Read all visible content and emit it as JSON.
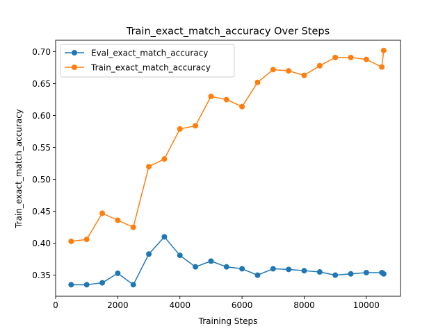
{
  "chart_data": {
    "type": "line",
    "title": "Train_exact_match_accuracy Over Steps",
    "xlabel": "Training Steps",
    "ylabel": "Train_exact_match_accuracy",
    "xlim": [
      0,
      11100
    ],
    "ylim": [
      0.317,
      0.718
    ],
    "xticks": [
      0,
      2000,
      4000,
      6000,
      8000,
      10000
    ],
    "yticks": [
      0.35,
      0.4,
      0.45,
      0.5,
      0.55,
      0.6,
      0.65,
      0.7
    ],
    "grid": false,
    "legend_position": "upper-left",
    "series": [
      {
        "name": "Eval_exact_match_accuracy",
        "color": "#1f77b4",
        "x": [
          500,
          1000,
          1500,
          2000,
          2500,
          3000,
          3500,
          4000,
          4500,
          5000,
          5500,
          6000,
          6500,
          7000,
          7500,
          8000,
          8500,
          9000,
          9500,
          10000,
          10500,
          10560
        ],
        "y": [
          0.335,
          0.335,
          0.338,
          0.353,
          0.335,
          0.383,
          0.41,
          0.381,
          0.363,
          0.372,
          0.363,
          0.36,
          0.35,
          0.36,
          0.359,
          0.357,
          0.355,
          0.35,
          0.352,
          0.354,
          0.354,
          0.352
        ]
      },
      {
        "name": "Train_exact_match_accuracy",
        "color": "#ff7f0e",
        "x": [
          500,
          1000,
          1500,
          2000,
          2500,
          3000,
          3500,
          4000,
          4500,
          5000,
          5500,
          6000,
          6500,
          7000,
          7500,
          8000,
          8500,
          9000,
          9500,
          10000,
          10500,
          10560
        ],
        "y": [
          0.403,
          0.406,
          0.447,
          0.436,
          0.425,
          0.52,
          0.532,
          0.579,
          0.584,
          0.63,
          0.625,
          0.614,
          0.652,
          0.672,
          0.67,
          0.663,
          0.678,
          0.691,
          0.691,
          0.688,
          0.676,
          0.702
        ]
      }
    ]
  }
}
